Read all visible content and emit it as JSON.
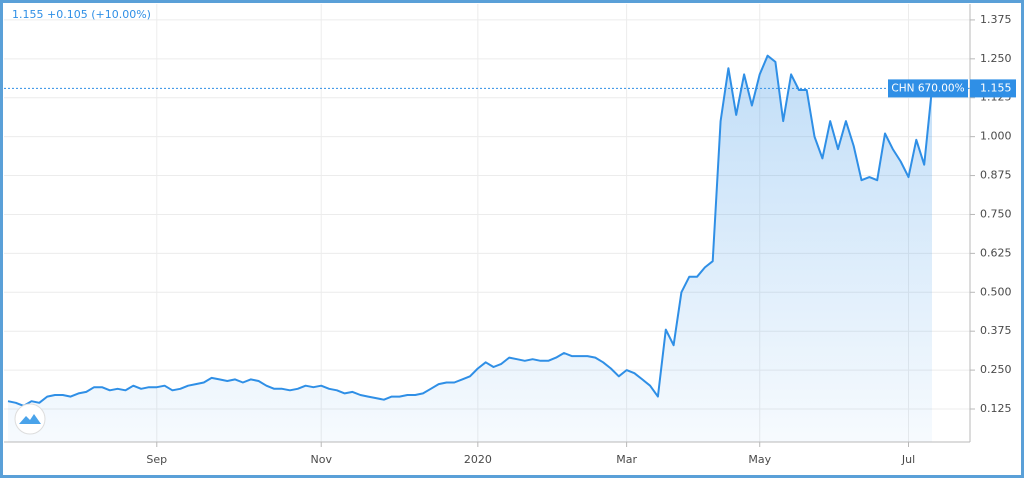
{
  "chart_data": {
    "type": "area-line",
    "header": "1.155 +0.105 (+10.00%)",
    "symbol_label": "CHN 670.00%",
    "color": "#2f8fe6",
    "grid": true,
    "categories": [
      null,
      null,
      null,
      null,
      null,
      null,
      null,
      null,
      null,
      null,
      null,
      null,
      null,
      null,
      null,
      null,
      null,
      null,
      null,
      "Sep",
      null,
      null,
      null,
      null,
      null,
      null,
      null,
      null,
      null,
      null,
      null,
      null,
      null,
      null,
      null,
      null,
      null,
      null,
      null,
      null,
      "Nov",
      null,
      null,
      null,
      null,
      null,
      null,
      null,
      null,
      null,
      null,
      null,
      null,
      null,
      null,
      null,
      null,
      null,
      null,
      null,
      "2020",
      null,
      null,
      null,
      null,
      null,
      null,
      null,
      null,
      null,
      null,
      null,
      null,
      null,
      null,
      null,
      null,
      null,
      null,
      "Mar",
      null,
      null,
      null,
      null,
      null,
      null,
      null,
      null,
      null,
      null,
      null,
      null,
      null,
      null,
      null,
      null,
      "May",
      null,
      null,
      null,
      null,
      null,
      null,
      null,
      null,
      null,
      null,
      null,
      null,
      null,
      null,
      null,
      null,
      null,
      null,
      "Jul",
      null,
      null,
      null
    ],
    "values": [
      0.15,
      0.145,
      0.135,
      0.15,
      0.145,
      0.165,
      0.17,
      0.17,
      0.165,
      0.175,
      0.18,
      0.195,
      0.195,
      0.185,
      0.19,
      0.185,
      0.2,
      0.19,
      0.195,
      0.195,
      0.2,
      0.185,
      0.19,
      0.2,
      0.205,
      0.21,
      0.225,
      0.22,
      0.215,
      0.22,
      0.21,
      0.22,
      0.215,
      0.2,
      0.19,
      0.19,
      0.185,
      0.19,
      0.2,
      0.195,
      0.2,
      0.19,
      0.185,
      0.175,
      0.18,
      0.17,
      0.165,
      0.16,
      0.155,
      0.165,
      0.165,
      0.17,
      0.17,
      0.175,
      0.19,
      0.205,
      0.21,
      0.21,
      0.22,
      0.23,
      0.255,
      0.275,
      0.26,
      0.27,
      0.29,
      0.285,
      0.28,
      0.285,
      0.28,
      0.28,
      0.29,
      0.305,
      0.295,
      0.295,
      0.295,
      0.29,
      0.275,
      0.255,
      0.23,
      0.25,
      0.24,
      0.22,
      0.2,
      0.165,
      0.38,
      0.33,
      0.5,
      0.55,
      0.55,
      0.58,
      0.6,
      1.05,
      1.22,
      1.07,
      1.2,
      1.1,
      1.2,
      1.26,
      1.24,
      1.05,
      1.2,
      1.15,
      1.15,
      1.0,
      0.93,
      1.05,
      0.96,
      1.05,
      0.97,
      0.86,
      0.87,
      0.86,
      1.01,
      0.96,
      0.92,
      0.87,
      0.99,
      0.91,
      1.155
    ],
    "ylim": [
      0.019,
      1.439
    ],
    "yticks": [
      0.125,
      {
        "value": 0.25,
        "label": "0.250"
      },
      0.375,
      {
        "value": 0.5,
        "label": "0.500"
      },
      0.625,
      {
        "value": 0.75,
        "label": "0.750"
      },
      0.875,
      {
        "value": 1.0,
        "label": "1.000"
      },
      1.125,
      {
        "value": 1.25,
        "label": "1.250"
      },
      1.375
    ]
  }
}
